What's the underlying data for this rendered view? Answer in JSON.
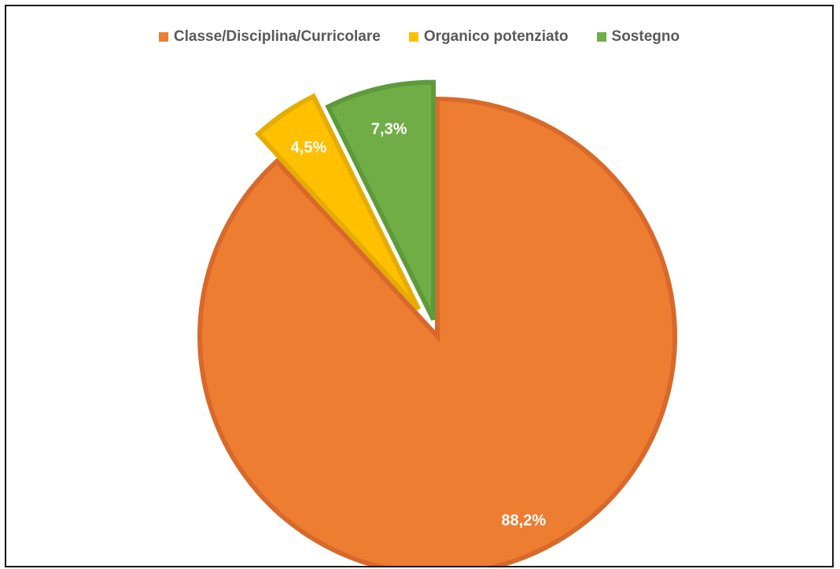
{
  "chart_data": {
    "type": "pie",
    "title": "",
    "legend_position": "top",
    "categories": [
      "Classe/Disciplina/Curricolare",
      "Organico potenziato",
      "Sostegno"
    ],
    "values": [
      88.2,
      4.5,
      7.3
    ],
    "data_labels": [
      "88,2%",
      "4,5%",
      "7,3%"
    ],
    "colors": [
      "#ED7D31",
      "#FFC000",
      "#70AD47"
    ],
    "border_colors": [
      "#D9692A",
      "#E6AC00",
      "#5E9A3A"
    ],
    "exploded": [
      false,
      true,
      true
    ]
  }
}
